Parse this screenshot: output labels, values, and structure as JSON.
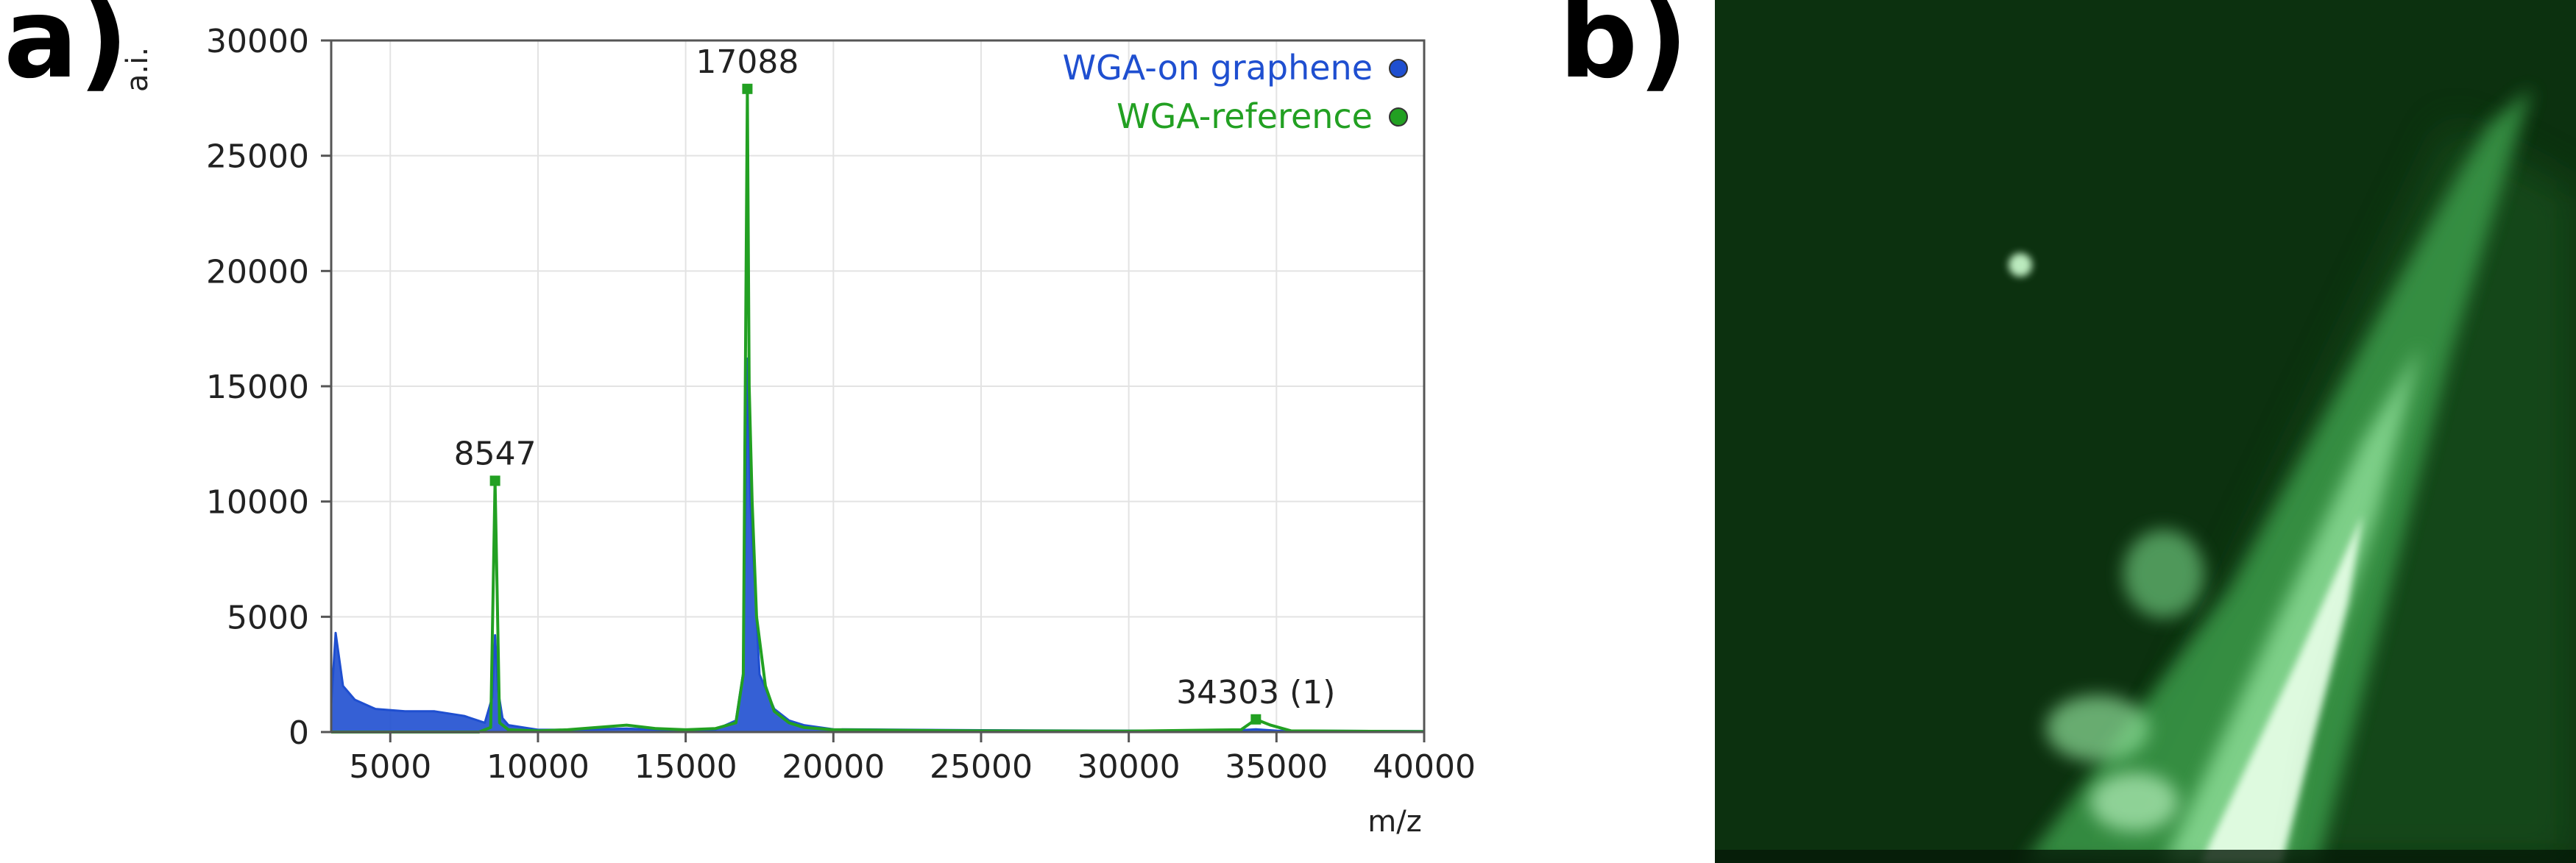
{
  "panels": {
    "a": "a)",
    "b": "b)"
  },
  "colors": {
    "graphene": "#1f4fd0",
    "reference": "#22a022",
    "grid": "#e3e3e3",
    "micrograph_bg": "#0b2a0e"
  },
  "chart_data": {
    "type": "line",
    "title": "",
    "xlabel": "m/z",
    "ylabel": "a.i.",
    "xlim": [
      3000,
      40000
    ],
    "ylim": [
      0,
      30000
    ],
    "xticks": [
      5000,
      10000,
      15000,
      20000,
      25000,
      30000,
      35000,
      40000
    ],
    "yticks": [
      0,
      5000,
      10000,
      15000,
      20000,
      25000,
      30000
    ],
    "grid": true,
    "legend_position": "top-right",
    "series": [
      {
        "name": "WGA-on graphene",
        "color": "#1f4fd0",
        "x": [
          3000,
          3150,
          3400,
          3800,
          4500,
          5500,
          6500,
          7500,
          8200,
          8450,
          8547,
          8650,
          8800,
          9000,
          9500,
          10000,
          11000,
          12000,
          13000,
          14000,
          15000,
          16000,
          16700,
          16950,
          17088,
          17200,
          17500,
          18000,
          18500,
          19000,
          20000,
          25000,
          30000,
          33500,
          34303,
          35000,
          40000
        ],
        "y": [
          1200,
          4300,
          2000,
          1400,
          1000,
          900,
          900,
          700,
          400,
          1500,
          4200,
          1800,
          600,
          300,
          200,
          100,
          100,
          120,
          150,
          100,
          80,
          100,
          500,
          2600,
          16200,
          9800,
          2500,
          1000,
          500,
          300,
          120,
          80,
          60,
          60,
          120,
          60,
          40
        ]
      },
      {
        "name": "WGA-reference",
        "color": "#22a022",
        "x": [
          3000,
          5000,
          8000,
          8400,
          8547,
          8700,
          9000,
          10000,
          11000,
          12000,
          13000,
          14000,
          15000,
          16000,
          16700,
          16950,
          17088,
          17150,
          17250,
          17400,
          17700,
          18000,
          18500,
          19000,
          20000,
          25000,
          30000,
          33800,
          34303,
          34800,
          35500,
          40000
        ],
        "y": [
          0,
          0,
          0,
          200,
          10900,
          400,
          100,
          50,
          100,
          200,
          300,
          150,
          100,
          150,
          400,
          2500,
          27900,
          15000,
          10000,
          5000,
          2000,
          900,
          400,
          200,
          100,
          50,
          40,
          100,
          550,
          300,
          50,
          20
        ]
      }
    ],
    "annotations": [
      {
        "text": "8547",
        "x": 8547,
        "y": 10900
      },
      {
        "text": "17088",
        "x": 17088,
        "y": 27900
      },
      {
        "text": "34303 (1)",
        "x": 34303,
        "y": 550
      }
    ]
  }
}
